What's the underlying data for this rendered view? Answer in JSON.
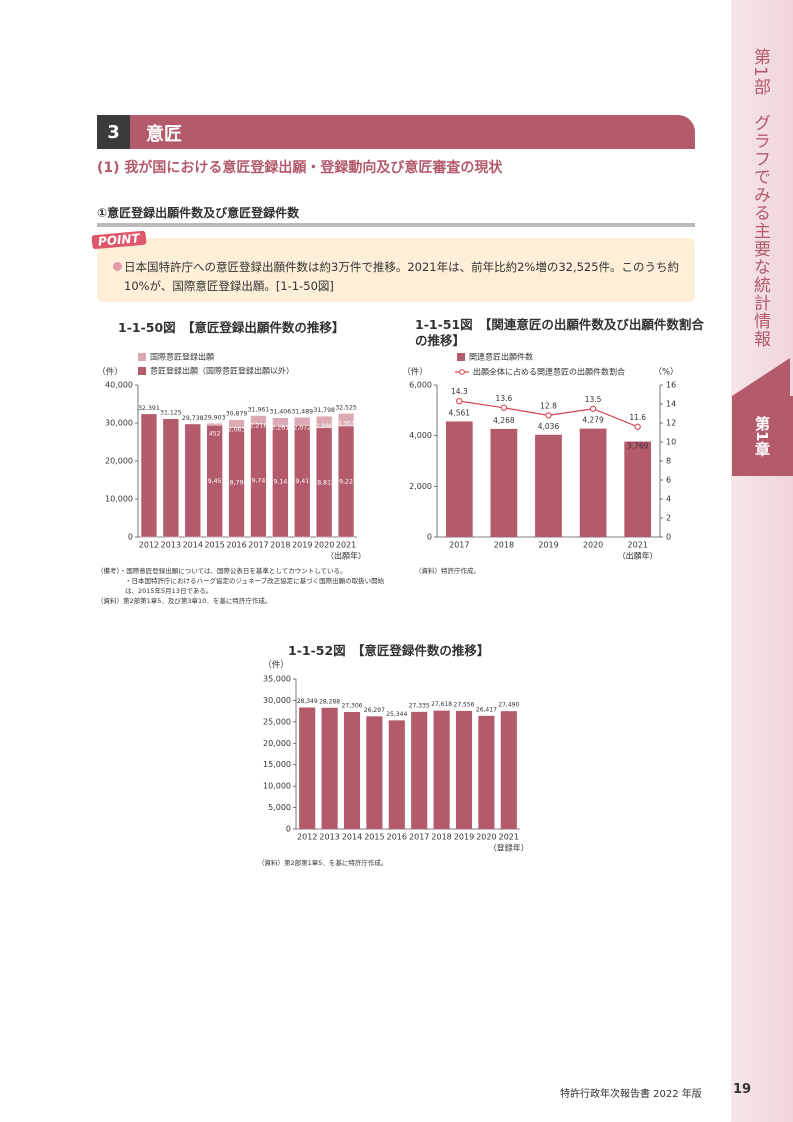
{
  "header": {
    "section_number": "3",
    "section_title": "意匠",
    "heading": "(1) 我が国における意匠登録出願・登録動向及び意匠審査の現状",
    "subheading": "①意匠登録出願件数及び意匠登録件数"
  },
  "point": {
    "badge": "POINT",
    "text": "日本国特許庁への意匠登録出願件数は約3万件で推移。2021年は、前年比約2%増の32,525件。このうち約10%が、国際意匠登録出願。[1-1-50図]"
  },
  "side": {
    "part": "第1部　グラフでみる主要な統計情報",
    "chapter": "第1章"
  },
  "footer": {
    "publication": "特許行政年次報告書 2022 年版",
    "page": "19"
  },
  "chart_data": [
    {
      "type": "stacked_bar",
      "title": "1-1-50図　【意匠登録出願件数の推移】",
      "y_label": "（件）",
      "x_label": "（出願年）",
      "categories": [
        "2012",
        "2013",
        "2014",
        "2015",
        "2016",
        "2017",
        "2018",
        "2019",
        "2020",
        "2021"
      ],
      "series": [
        {
          "name": "意匠登録出願（国際意匠登録出願以外）",
          "color": "#b35a6b",
          "values": [
            32391,
            31125,
            29738,
            29451,
            28796,
            29745,
            29145,
            29417,
            28812,
            29222
          ],
          "value_labels": [
            null,
            null,
            null,
            "29,451",
            "28,796",
            "29,745",
            "29,145",
            "29,417",
            "28,812",
            "29,222"
          ]
        },
        {
          "name": "国際意匠登録出願",
          "color": "#dcaab3",
          "values": [
            null,
            null,
            null,
            452,
            2083,
            2216,
            2261,
            2072,
            2986,
            3303
          ],
          "value_labels": [
            null,
            null,
            null,
            "452",
            "2,083",
            "2,216",
            "2,261",
            "2,072",
            "2,986",
            "3,303"
          ]
        }
      ],
      "totals": [
        32391,
        31125,
        29738,
        29903,
        30879,
        31961,
        31406,
        31489,
        31798,
        32525
      ],
      "total_labels": [
        "32,391",
        "31,125",
        "29,738",
        "29,903",
        "30,879",
        "31,961",
        "31,406",
        "31,489",
        "31,798",
        "32,525"
      ],
      "ylim": [
        0,
        40000
      ],
      "yticks": [
        0,
        {
          "value": 10000,
          "label": "10,000"
        },
        {
          "value": 20000,
          "label": "20,000"
        },
        {
          "value": 30000,
          "label": "30,000"
        },
        {
          "value": 40000,
          "label": "40,000"
        }
      ],
      "grid": false,
      "notes": [
        "（備考）・国際意匠登録出願については、国際公表日を基準としてカウントしている。",
        "・日本国特許庁におけるハーグ協定のジュネーブ改正協定に基づく国際出願の取扱い開始は、2015年5月13日である。",
        "（資料）第2部第1章5．及び第3章10．を基に特許庁作成。"
      ]
    },
    {
      "type": "bar_line",
      "title": "1-1-51図　【関連意匠の出願件数及び出願件数割合の推移】",
      "y_label": "（件）",
      "y2_label": "（%）",
      "x_label": "（出願年）",
      "categories": [
        "2017",
        "2018",
        "2019",
        "2020",
        "2021"
      ],
      "series": [
        {
          "name": "関連意匠出願件数",
          "type": "bar",
          "color": "#b35a6b",
          "values": [
            4561,
            4268,
            4036,
            4279,
            3769
          ],
          "value_labels": [
            "4,561",
            "4,268",
            "4,036",
            "4,279",
            "3,769"
          ]
        },
        {
          "name": "出願全体に占める関連意匠の出願件数割合",
          "type": "line",
          "axis": "y2",
          "color": "#d6434f",
          "values": [
            14.3,
            13.6,
            12.8,
            13.5,
            11.6
          ]
        }
      ],
      "ylim": [
        0,
        6000
      ],
      "yticks": [
        0,
        {
          "value": 2000,
          "label": "2,000"
        },
        {
          "value": 4000,
          "label": "4,000"
        },
        {
          "value": 6000,
          "label": "6,000"
        }
      ],
      "y2lim": [
        0,
        16
      ],
      "y2ticks": [
        0,
        2,
        4,
        6,
        8,
        10,
        12,
        14,
        16
      ],
      "grid": false,
      "notes": [
        "（資料）特許庁作成。"
      ]
    },
    {
      "type": "bar",
      "title": "1-1-52図　【意匠登録件数の推移】",
      "y_label": "（件）",
      "x_label": "（登録年）",
      "categories": [
        "2012",
        "2013",
        "2014",
        "2015",
        "2016",
        "2017",
        "2018",
        "2019",
        "2020",
        "2021"
      ],
      "values": [
        28349,
        28288,
        27306,
        26297,
        25344,
        27335,
        27618,
        27556,
        26417,
        27490
      ],
      "value_labels": [
        "28,349",
        "28,288",
        "27,306",
        "26,297",
        "25,344",
        "27,335",
        "27,618",
        "27,556",
        "26,417",
        "27,490"
      ],
      "color": "#b35a6b",
      "ylim": [
        0,
        35000
      ],
      "yticks": [
        0,
        {
          "value": 5000,
          "label": "5,000"
        },
        {
          "value": 10000,
          "label": "10,000"
        },
        {
          "value": 15000,
          "label": "15,000"
        },
        {
          "value": 20000,
          "label": "20,000"
        },
        {
          "value": 25000,
          "label": "25,000"
        },
        {
          "value": 30000,
          "label": "30,000"
        },
        {
          "value": 35000,
          "label": "35,000"
        }
      ],
      "grid": false,
      "notes": [
        "（資料）第2部第1章5．を基に特許庁作成。"
      ]
    }
  ]
}
